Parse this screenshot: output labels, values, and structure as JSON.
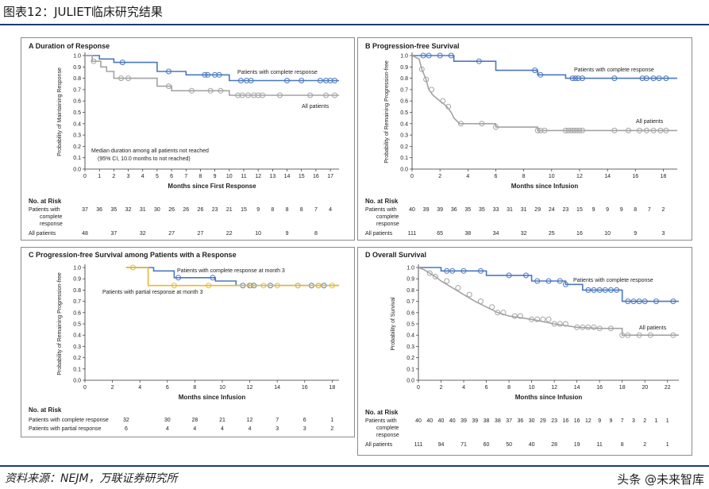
{
  "page": {
    "title": "图表12：JULIET临床研究结果",
    "footer": "资料来源：NEJM，万联证券研究所",
    "watermark": "头条 @未来智库"
  },
  "colors": {
    "blue": "#4a78c0",
    "gray": "#a3a3a3",
    "gold": "#e8b830",
    "rule": "#1f3b6f"
  },
  "chart_data": [
    {
      "type": "line",
      "panel": "A",
      "title": "A Duration of Response",
      "xlabel": "Months since First Response",
      "ylabel": "Probability of Maintaining Response",
      "xlim": [
        0,
        17.6
      ],
      "ylim": [
        0,
        1.0
      ],
      "xticks": [
        "0",
        "1",
        "2",
        "3",
        "4",
        "5",
        "6",
        "7",
        "8",
        "9",
        "10",
        "11",
        "12",
        "13",
        "14",
        "15",
        "16",
        "17"
      ],
      "yticks": [
        "0.0",
        "0.1",
        "0.2",
        "0.3",
        "0.4",
        "0.5",
        "0.6",
        "0.7",
        "0.8",
        "0.9",
        "1.0"
      ],
      "annotations": [
        "Median duration among all patients not reached",
        "(95% CI, 10.0 months to not reached)"
      ],
      "series": [
        {
          "name": "Patients with complete response",
          "color": "blue",
          "x": [
            0,
            1.0,
            1.0,
            2.0,
            2.0,
            5.0,
            5.0,
            7.0,
            7.0,
            10.0,
            10.0,
            17.6
          ],
          "y": [
            1.0,
            1.0,
            0.97,
            0.97,
            0.94,
            0.94,
            0.86,
            0.86,
            0.83,
            0.83,
            0.78,
            0.78
          ],
          "censor_x": [
            2.6,
            5.8,
            8.3,
            8.5,
            9.0,
            9.3,
            10.8,
            11.2,
            11.5,
            14.0,
            15.0,
            16.3,
            16.7,
            17.0,
            17.3
          ],
          "label": "Patients with complete response"
        },
        {
          "name": "All patients",
          "color": "gray",
          "x": [
            0,
            0.5,
            0.5,
            1.1,
            1.1,
            1.5,
            1.5,
            2.0,
            2.0,
            5.0,
            5.0,
            6.0,
            6.0,
            10.0,
            10.0,
            17.6
          ],
          "y": [
            1.0,
            1.0,
            0.95,
            0.95,
            0.9,
            0.9,
            0.86,
            0.86,
            0.8,
            0.8,
            0.73,
            0.73,
            0.69,
            0.69,
            0.65,
            0.65
          ],
          "censor_x": [
            0.6,
            2.5,
            3.0,
            5.8,
            7.4,
            8.7,
            9.4,
            10.6,
            10.9,
            11.3,
            11.7,
            12.0,
            12.3,
            13.5,
            15.6,
            16.7,
            17.3
          ],
          "label": "All patients"
        }
      ],
      "risk_table": {
        "header": "No. at Risk",
        "rows": [
          {
            "label": "Patients with complete response",
            "x": [
              0,
              1,
              2,
              3,
              4,
              5,
              6,
              7,
              8,
              9,
              10,
              11,
              12,
              13,
              14,
              15,
              16,
              17
            ],
            "values": [
              "37",
              "36",
              "35",
              "32",
              "31",
              "30",
              "26",
              "26",
              "26",
              "23",
              "21",
              "15",
              "9",
              "8",
              "8",
              "8",
              "7",
              "4"
            ]
          },
          {
            "label": "All patients",
            "x": [
              0,
              2,
              4,
              6,
              8,
              10,
              12,
              14,
              16
            ],
            "values": [
              "48",
              "37",
              "32",
              "27",
              "27",
              "22",
              "10",
              "9",
              "8"
            ]
          }
        ]
      }
    },
    {
      "type": "line",
      "panel": "B",
      "title": "B Progression-free Survival",
      "xlabel": "Months since Infusion",
      "ylabel": "Probability of Remaining Progression-free",
      "xlim": [
        0,
        19.0
      ],
      "ylim": [
        0,
        1.0
      ],
      "xticks": [
        "0",
        "2",
        "4",
        "6",
        "8",
        "10",
        "12",
        "14",
        "16",
        "18"
      ],
      "yticks": [
        "0.0",
        "0.1",
        "0.2",
        "0.3",
        "0.4",
        "0.5",
        "0.6",
        "0.7",
        "0.8",
        "0.9",
        "1.0"
      ],
      "series": [
        {
          "name": "Patients with complete response",
          "color": "blue",
          "x": [
            0,
            3.0,
            3.0,
            6.0,
            6.0,
            9.0,
            9.0,
            11.0,
            11.0,
            19.0
          ],
          "y": [
            1.0,
            1.0,
            0.95,
            0.95,
            0.87,
            0.87,
            0.83,
            0.83,
            0.8,
            0.8
          ],
          "censor_x": [
            0.8,
            1.2,
            2.0,
            2.8,
            4.8,
            8.8,
            9.2,
            11.5,
            11.7,
            11.9,
            12.2,
            14.5,
            16.5,
            16.8,
            17.3,
            17.7,
            18.2
          ],
          "label": "Patients with complete response"
        },
        {
          "name": "All patients",
          "color": "gray",
          "x": [
            0,
            0.5,
            0.7,
            1.0,
            1.2,
            1.5,
            2.0,
            2.5,
            2.8,
            3.0,
            3.4,
            6.0,
            6.0,
            9.0,
            9.0,
            19.0
          ],
          "y": [
            1.0,
            0.97,
            0.88,
            0.79,
            0.7,
            0.65,
            0.6,
            0.55,
            0.5,
            0.45,
            0.4,
            0.4,
            0.37,
            0.37,
            0.34,
            0.34
          ],
          "censor_x": [
            0.7,
            1.0,
            1.4,
            2.2,
            2.6,
            3.5,
            5.0,
            6.0,
            9.0,
            9.2,
            9.5,
            11.0,
            11.2,
            11.4,
            11.6,
            11.8,
            12.0,
            12.2,
            14.5,
            15.5,
            16.3,
            16.8,
            17.3,
            17.8,
            18.2
          ],
          "label": "All patients"
        }
      ],
      "risk_table": {
        "header": "No. at Risk",
        "rows": [
          {
            "label": "Patients with complete response",
            "x": [
              0,
              1,
              2,
              3,
              4,
              5,
              6,
              7,
              8,
              9,
              10,
              11,
              12,
              13,
              14,
              15,
              16,
              17,
              18
            ],
            "values": [
              "40",
              "39",
              "39",
              "36",
              "35",
              "35",
              "33",
              "31",
              "31",
              "29",
              "24",
              "23",
              "15",
              "9",
              "9",
              "9",
              "8",
              "7",
              "2"
            ]
          },
          {
            "label": "All patients",
            "x": [
              0,
              2,
              4,
              6,
              8,
              10,
              12,
              14,
              16,
              18
            ],
            "values": [
              "111",
              "65",
              "38",
              "34",
              "32",
              "25",
              "16",
              "10",
              "9",
              "3"
            ]
          }
        ]
      }
    },
    {
      "type": "line",
      "panel": "C",
      "title": "C Progression-free Survival among Patients with a Response",
      "xlabel": "Months since Infusion",
      "ylabel": "Probability of Remaining Progression-free",
      "xlim": [
        0,
        18.5
      ],
      "ylim": [
        0,
        1.0
      ],
      "xticks": [
        "0",
        "2",
        "4",
        "6",
        "8",
        "10",
        "12",
        "14",
        "16",
        "18"
      ],
      "yticks": [
        "0.0",
        "0.1",
        "0.2",
        "0.3",
        "0.4",
        "0.5",
        "0.6",
        "0.7",
        "0.8",
        "0.9",
        "1.0"
      ],
      "series": [
        {
          "name": "Patients with complete response at month 3",
          "color": "blue",
          "x": [
            3.0,
            5.0,
            5.0,
            6.5,
            6.5,
            9.5,
            9.5,
            11.0,
            11.0,
            18.5
          ],
          "y": [
            1.0,
            1.0,
            0.97,
            0.97,
            0.91,
            0.91,
            0.88,
            0.88,
            0.84,
            0.84
          ],
          "censor_x": [
            6.8,
            9.3,
            11.5,
            12.0,
            12.3,
            13.5,
            15.5,
            16.5,
            17.0,
            17.4
          ],
          "label": "Patients with complete response at month 3"
        },
        {
          "name": "Patients with partial response at month 3",
          "color": "gold",
          "x": [
            3.0,
            4.6,
            4.6,
            18.5
          ],
          "y": [
            1.0,
            1.0,
            0.84,
            0.84
          ],
          "censor_x": [
            3.5,
            6.5,
            9.0,
            12.1,
            13.0,
            14.0,
            15.5,
            17.0,
            18.0
          ],
          "label": "Patients with partial response at month 3"
        }
      ],
      "risk_table": {
        "header": "No. at Risk",
        "rows": [
          {
            "label": "Patients with complete response",
            "x": [
              3,
              6,
              8,
              10,
              12,
              14,
              16,
              18
            ],
            "values": [
              "32",
              "30",
              "28",
              "21",
              "12",
              "7",
              "6",
              "1"
            ]
          },
          {
            "label": "Patients with partial response",
            "x": [
              3,
              6,
              8,
              10,
              12,
              14,
              16,
              18
            ],
            "values": [
              "6",
              "4",
              "4",
              "4",
              "4",
              "3",
              "3",
              "2"
            ]
          }
        ]
      }
    },
    {
      "type": "line",
      "panel": "D",
      "title": "D Overall Survival",
      "xlabel": "Months since Infusion",
      "ylabel": "Probability of Survival",
      "xlim": [
        0,
        23.0
      ],
      "ylim": [
        0,
        1.0
      ],
      "xticks": [
        "0",
        "2",
        "4",
        "6",
        "8",
        "10",
        "12",
        "14",
        "16",
        "18",
        "20",
        "22"
      ],
      "yticks": [
        "0.0",
        "0.1",
        "0.2",
        "0.3",
        "0.4",
        "0.5",
        "0.6",
        "0.7",
        "0.8",
        "0.9",
        "1.0"
      ],
      "series": [
        {
          "name": "Patients with complete response",
          "color": "blue",
          "x": [
            0,
            2.0,
            2.0,
            6.0,
            6.0,
            10.0,
            10.0,
            13.0,
            13.0,
            14.5,
            14.5,
            18.0,
            18.0,
            23.0
          ],
          "y": [
            1.0,
            1.0,
            0.97,
            0.97,
            0.93,
            0.93,
            0.88,
            0.88,
            0.85,
            0.85,
            0.8,
            0.8,
            0.7,
            0.7
          ],
          "censor_x": [
            2.5,
            3.0,
            4.0,
            5.5,
            8.0,
            9.5,
            10.5,
            11.5,
            12.5,
            13.0,
            15.0,
            15.5,
            16.0,
            16.5,
            17.0,
            17.5,
            18.5,
            19.0,
            19.5,
            20.0,
            21.0,
            22.5
          ],
          "label": "Patients with complete response"
        },
        {
          "name": "All patients",
          "color": "gray",
          "x": [
            0,
            0.5,
            1.0,
            1.5,
            2.0,
            3.0,
            4.0,
            5.0,
            6.0,
            7.0,
            8.0,
            10.0,
            12.0,
            14.0,
            16.0,
            18.0,
            18.0,
            23.0
          ],
          "y": [
            1.0,
            0.98,
            0.95,
            0.92,
            0.88,
            0.82,
            0.76,
            0.7,
            0.65,
            0.6,
            0.57,
            0.54,
            0.5,
            0.47,
            0.46,
            0.46,
            0.4,
            0.4
          ],
          "censor_x": [
            1.0,
            1.5,
            2.5,
            3.5,
            4.5,
            5.5,
            6.5,
            7.0,
            7.5,
            8.5,
            9.0,
            10.0,
            10.5,
            11.0,
            11.5,
            12.0,
            12.5,
            13.0,
            14.0,
            14.5,
            15.0,
            15.5,
            16.0,
            17.0,
            18.0,
            18.5,
            19.5,
            20.5,
            22.5
          ],
          "label": "All patients"
        }
      ],
      "risk_table": {
        "header": "No. at Risk",
        "rows": [
          {
            "label": "Patients with complete response",
            "x": [
              0,
              1,
              2,
              3,
              4,
              5,
              6,
              7,
              8,
              9,
              10,
              11,
              12,
              13,
              14,
              15,
              16,
              17,
              18,
              19,
              20,
              21,
              22
            ],
            "values": [
              "40",
              "40",
              "40",
              "40",
              "39",
              "39",
              "38",
              "38",
              "37",
              "36",
              "30",
              "29",
              "23",
              "16",
              "16",
              "12",
              "9",
              "9",
              "7",
              "3",
              "2",
              "1",
              "1"
            ]
          },
          {
            "label": "All patients",
            "x": [
              0,
              2,
              4,
              6,
              8,
              10,
              12,
              14,
              16,
              18,
              20,
              22
            ],
            "values": [
              "111",
              "94",
              "71",
              "60",
              "50",
              "40",
              "28",
              "19",
              "11",
              "8",
              "2",
              "1"
            ]
          }
        ]
      }
    }
  ]
}
